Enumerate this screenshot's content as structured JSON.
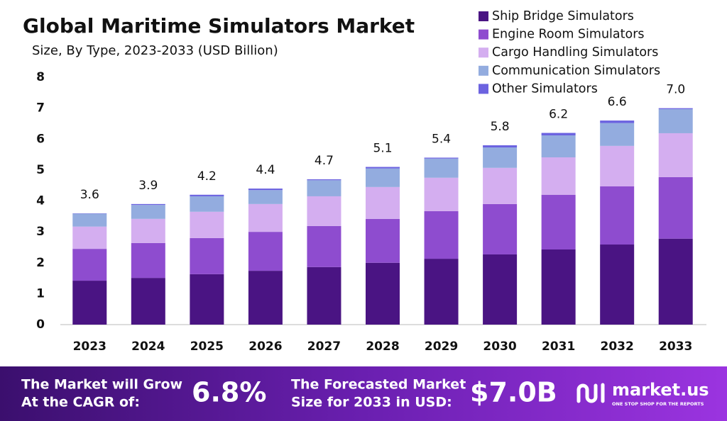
{
  "chart_data": {
    "type": "stacked_bar",
    "title": "Global Maritime Simulators Market",
    "subtitle": "Size, By Type, 2023-2033 (USD Billion)",
    "categories": [
      "2023",
      "2024",
      "2025",
      "2026",
      "2027",
      "2028",
      "2029",
      "2030",
      "2031",
      "2032",
      "2033"
    ],
    "series": [
      {
        "name": "Ship Bridge Simulators",
        "color": "#4a1483",
        "values": [
          1.42,
          1.51,
          1.63,
          1.74,
          1.86,
          2.0,
          2.13,
          2.27,
          2.43,
          2.59,
          2.78
        ]
      },
      {
        "name": "Engine Room Simulators",
        "color": "#8e4ccf",
        "values": [
          1.03,
          1.13,
          1.17,
          1.26,
          1.33,
          1.42,
          1.54,
          1.63,
          1.77,
          1.88,
          1.99
        ]
      },
      {
        "name": "Cargo Handling Simulators",
        "color": "#d4aef0",
        "values": [
          0.72,
          0.78,
          0.85,
          0.9,
          0.96,
          1.03,
          1.08,
          1.17,
          1.21,
          1.31,
          1.42
        ]
      },
      {
        "name": "Communication Simulators",
        "color": "#93acdf",
        "values": [
          0.42,
          0.45,
          0.5,
          0.45,
          0.52,
          0.6,
          0.62,
          0.66,
          0.71,
          0.74,
          0.78
        ]
      },
      {
        "name": "Other Simulators",
        "color": "#6c63e0",
        "values": [
          0.01,
          0.03,
          0.05,
          0.05,
          0.03,
          0.05,
          0.03,
          0.07,
          0.08,
          0.08,
          0.03
        ]
      }
    ],
    "totals": [
      3.6,
      3.9,
      4.2,
      4.4,
      4.7,
      5.1,
      5.4,
      5.8,
      6.2,
      6.6,
      7.0
    ],
    "total_labels": [
      "3.6",
      "3.9",
      "4.2",
      "4.4",
      "4.7",
      "5.1",
      "5.4",
      "5.8",
      "6.2",
      "6.6",
      "7.0"
    ],
    "ylim": [
      0,
      8
    ],
    "yticks": [
      0,
      1,
      2,
      3,
      4,
      5,
      6,
      7,
      8
    ],
    "grid": false,
    "legend": "top-right"
  },
  "footer": {
    "cagr_text": [
      "The Market will Grow",
      "At the CAGR of:"
    ],
    "cagr_value": "6.8%",
    "forecast_text": [
      "The Forecasted Market",
      "Size for 2033 in USD:"
    ],
    "forecast_value": "$7.0B",
    "brand": "market.us",
    "tagline": "ONE STOP SHOP FOR THE REPORTS"
  }
}
